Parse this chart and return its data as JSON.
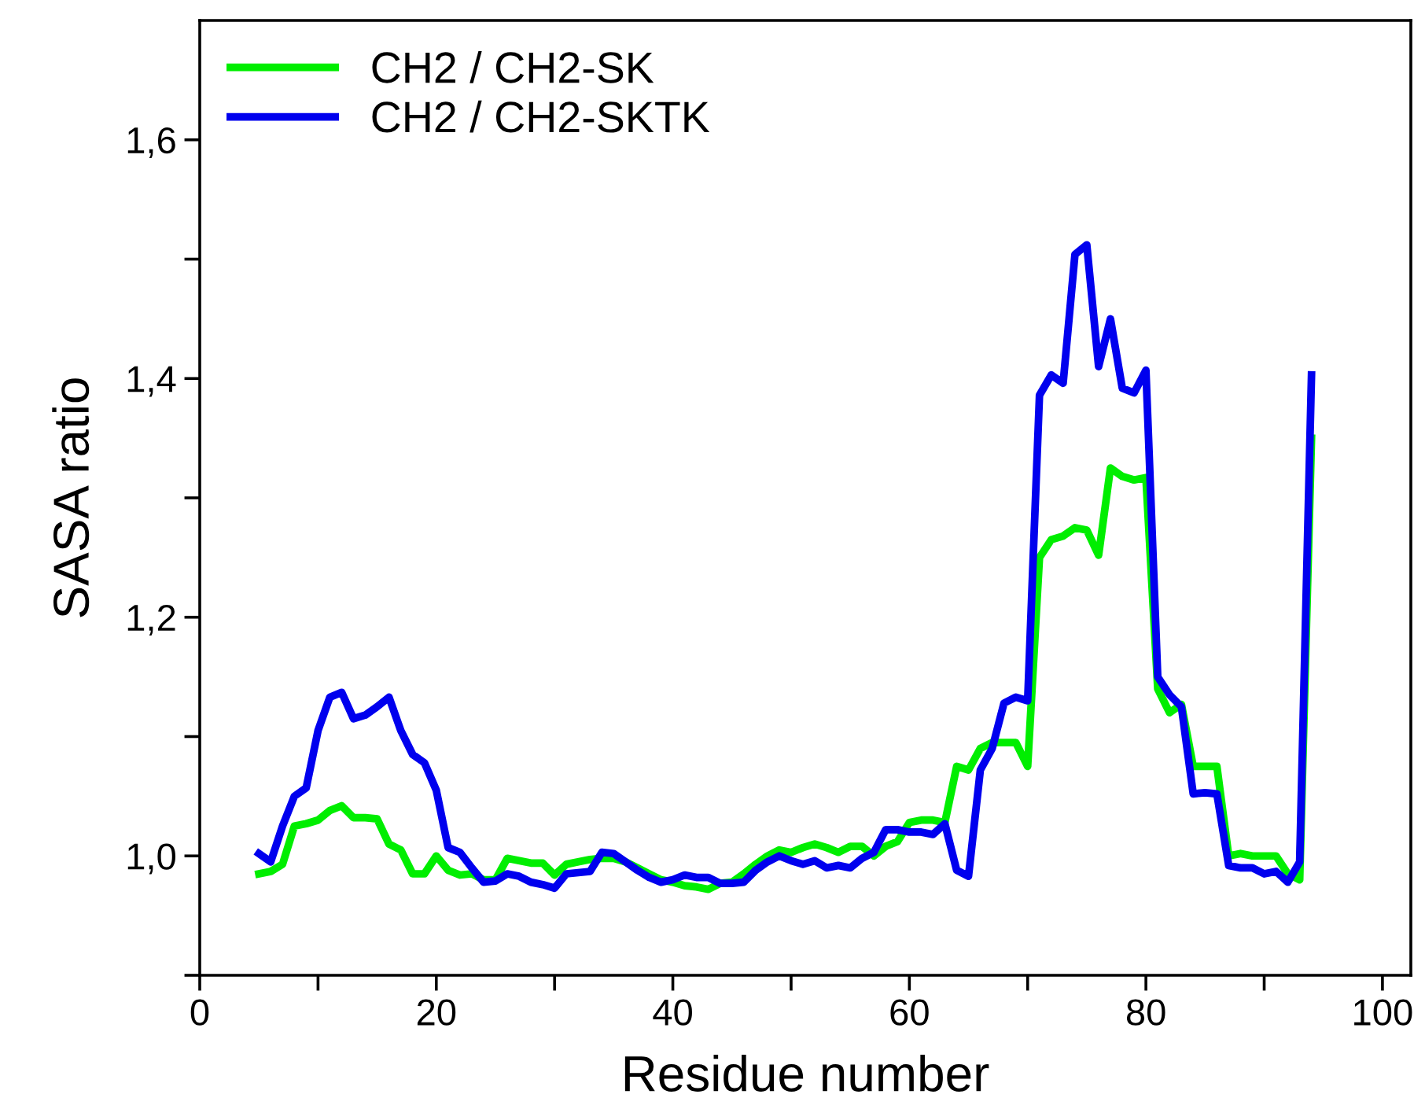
{
  "chart_data": {
    "type": "line",
    "xlabel": "Residue number",
    "ylabel": "SASA ratio",
    "x": [
      5,
      6,
      7,
      8,
      9,
      10,
      11,
      12,
      13,
      14,
      15,
      16,
      17,
      18,
      19,
      20,
      21,
      22,
      23,
      24,
      25,
      26,
      27,
      28,
      29,
      30,
      31,
      32,
      33,
      34,
      35,
      36,
      37,
      38,
      39,
      40,
      41,
      42,
      43,
      44,
      45,
      46,
      47,
      48,
      49,
      50,
      51,
      52,
      53,
      54,
      55,
      56,
      57,
      58,
      59,
      60,
      61,
      62,
      63,
      64,
      65,
      66,
      67,
      68,
      69,
      70,
      71,
      72,
      73,
      74,
      75,
      76,
      77,
      78,
      79,
      80,
      81,
      82,
      83,
      84,
      85,
      86,
      87,
      88,
      89,
      90,
      91,
      92,
      93,
      94
    ],
    "series": [
      {
        "name": "CH2 / CH2-SK",
        "color": "#00ee00",
        "values": [
          0.985,
          0.987,
          0.993,
          1.025,
          1.027,
          1.03,
          1.038,
          1.042,
          1.032,
          1.032,
          1.031,
          1.01,
          1.005,
          0.985,
          0.985,
          1.0,
          0.988,
          0.984,
          0.985,
          0.98,
          0.98,
          0.998,
          0.996,
          0.994,
          0.994,
          0.984,
          0.993,
          0.995,
          0.997,
          0.998,
          0.998,
          0.995,
          0.99,
          0.985,
          0.98,
          0.978,
          0.975,
          0.974,
          0.972,
          0.977,
          0.978,
          0.985,
          0.993,
          1.0,
          1.005,
          1.003,
          1.007,
          1.01,
          1.007,
          1.003,
          1.008,
          1.008,
          1.0,
          1.008,
          1.012,
          1.028,
          1.03,
          1.03,
          1.028,
          1.075,
          1.072,
          1.09,
          1.095,
          1.095,
          1.095,
          1.075,
          1.25,
          1.265,
          1.268,
          1.275,
          1.273,
          1.252,
          1.325,
          1.318,
          1.315,
          1.317,
          1.14,
          1.12,
          1.127,
          1.075,
          1.075,
          1.075,
          1.0,
          1.002,
          1.0,
          1.0,
          1.0,
          0.985,
          0.98,
          1.35
        ]
      },
      {
        "name": "CH2 / CH2-SKTK",
        "color": "#0000ee",
        "values": [
          1.002,
          0.995,
          1.025,
          1.05,
          1.057,
          1.105,
          1.133,
          1.137,
          1.115,
          1.118,
          1.125,
          1.133,
          1.105,
          1.085,
          1.078,
          1.055,
          1.007,
          1.003,
          0.99,
          0.978,
          0.979,
          0.985,
          0.983,
          0.978,
          0.976,
          0.973,
          0.985,
          0.986,
          0.987,
          1.003,
          1.002,
          0.995,
          0.988,
          0.982,
          0.978,
          0.98,
          0.984,
          0.982,
          0.982,
          0.977,
          0.977,
          0.978,
          0.988,
          0.995,
          1.0,
          0.996,
          0.993,
          0.996,
          0.99,
          0.992,
          0.99,
          0.998,
          1.003,
          1.022,
          1.022,
          1.02,
          1.02,
          1.018,
          1.027,
          0.988,
          0.983,
          1.072,
          1.09,
          1.128,
          1.133,
          1.13,
          1.386,
          1.403,
          1.396,
          1.504,
          1.512,
          1.41,
          1.45,
          1.392,
          1.388,
          1.407,
          1.15,
          1.135,
          1.125,
          1.052,
          1.053,
          1.052,
          0.992,
          0.99,
          0.99,
          0.985,
          0.987,
          0.978,
          0.995,
          1.403
        ]
      }
    ],
    "xlim": [
      0,
      102.4
    ],
    "xticks": [
      0,
      {
        "value": 10,
        "label": null
      },
      20,
      {
        "value": 30,
        "label": null
      },
      40,
      {
        "value": 50,
        "label": null
      },
      60,
      {
        "value": 70,
        "label": null
      },
      80,
      {
        "value": 90,
        "label": null
      },
      100
    ],
    "ylim": [
      0.9,
      1.7
    ],
    "yticks": [
      {
        "value": 0.9,
        "label": null
      },
      {
        "value": 1.0,
        "label": "1,0"
      },
      {
        "value": 1.1,
        "label": null
      },
      {
        "value": 1.2,
        "label": "1,2"
      },
      {
        "value": 1.3,
        "label": null
      },
      {
        "value": 1.4,
        "label": "1,4"
      },
      {
        "value": 1.5,
        "label": null
      },
      {
        "value": 1.6,
        "label": "1,6"
      }
    ],
    "legend": "top left",
    "grid": false,
    "marker": "none",
    "line_style": "solid"
  }
}
